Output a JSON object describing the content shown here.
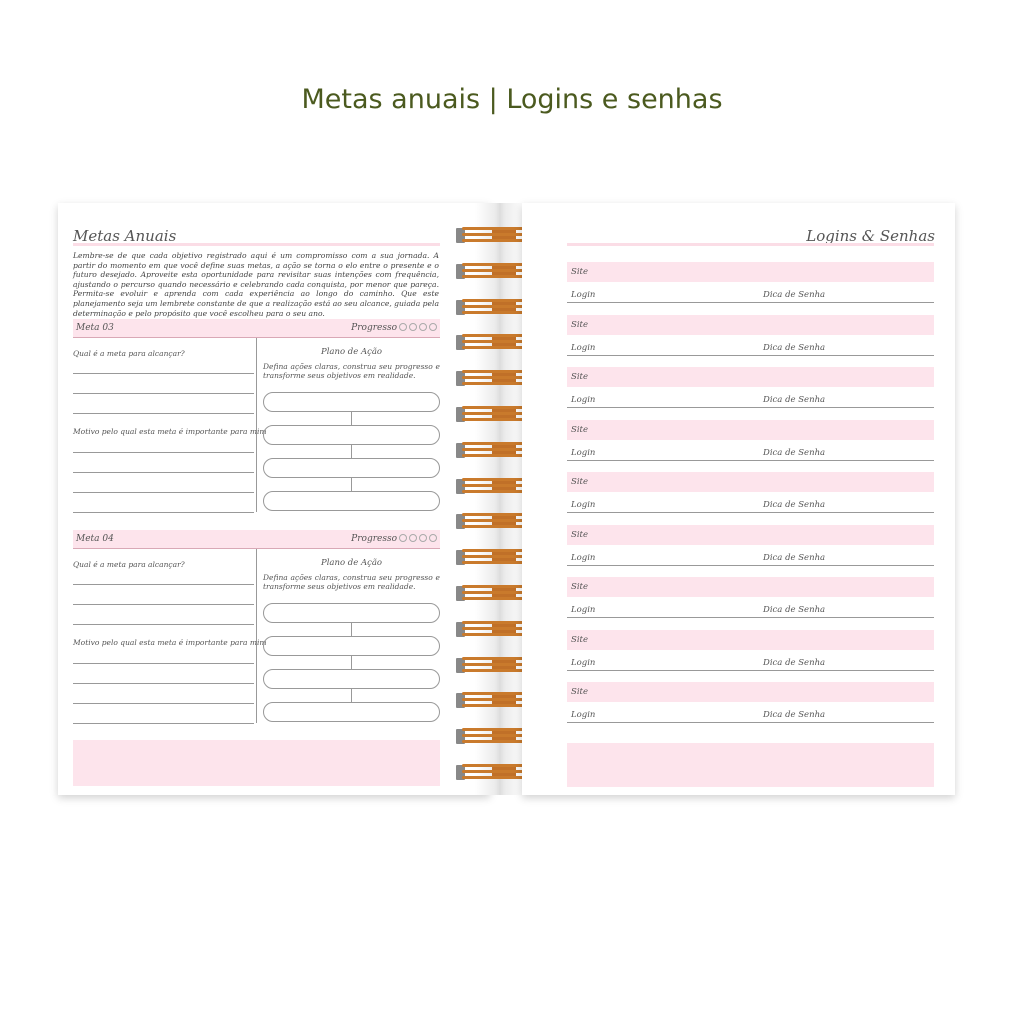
{
  "header": {
    "title": "Metas anuais | Logins e senhas"
  },
  "left": {
    "title": "Metas Anuais",
    "intro": "Lembre-se de que cada objetivo registrado aqui é um compromisso com a sua jornada. A partir do momento em que você define suas metas, a ação se torna o elo entre o presente e o futuro desejado. Aproveite esta oportunidade para revisitar suas intenções com frequência, ajustando o percurso quando necessário e celebrando cada conquista, por menor que pareça. Permita-se evoluir e aprenda com cada experiência ao longo do caminho. Que este planejamento seja um lembrete constante de que a realização está ao seu alcance, guiada pela determinação e pelo propósito que você escolheu para o seu ano.",
    "goals": [
      {
        "label": "Meta 03",
        "progress_label": "Progresso",
        "progress_steps": 4,
        "progress_filled": 0,
        "question1": "Qual é a meta para alcançar?",
        "question2": "Motivo pelo qual esta meta é importante para mim",
        "plan_title": "Plano de Ação",
        "plan_desc": "Defina ações claras, construa seu progresso e transforme seus objetivos em realidade."
      },
      {
        "label": "Meta 04",
        "progress_label": "Progresso",
        "progress_steps": 4,
        "progress_filled": 0,
        "question1": "Qual é a meta para alcançar?",
        "question2": "Motivo pelo qual esta meta é importante para mim",
        "plan_title": "Plano de Ação",
        "plan_desc": "Defina ações claras, construa seu progresso e transforme seus objetivos em realidade."
      }
    ]
  },
  "right": {
    "title": "Logins & Senhas",
    "entries": [
      {
        "site": "Site",
        "login": "Login",
        "hint": "Dica de Senha"
      },
      {
        "site": "Site",
        "login": "Login",
        "hint": "Dica de Senha"
      },
      {
        "site": "Site",
        "login": "Login",
        "hint": "Dica de Senha"
      },
      {
        "site": "Site",
        "login": "Login",
        "hint": "Dica de Senha"
      },
      {
        "site": "Site",
        "login": "Login",
        "hint": "Dica de Senha"
      },
      {
        "site": "Site",
        "login": "Login",
        "hint": "Dica de Senha"
      },
      {
        "site": "Site",
        "login": "Login",
        "hint": "Dica de Senha"
      },
      {
        "site": "Site",
        "login": "Login",
        "hint": "Dica de Senha"
      },
      {
        "site": "Site",
        "login": "Login",
        "hint": "Dica de Senha"
      }
    ]
  },
  "colors": {
    "accent_pink": "#fde4ec",
    "title_green": "#4b5a1f",
    "spiral_copper": "#c97a2c"
  }
}
